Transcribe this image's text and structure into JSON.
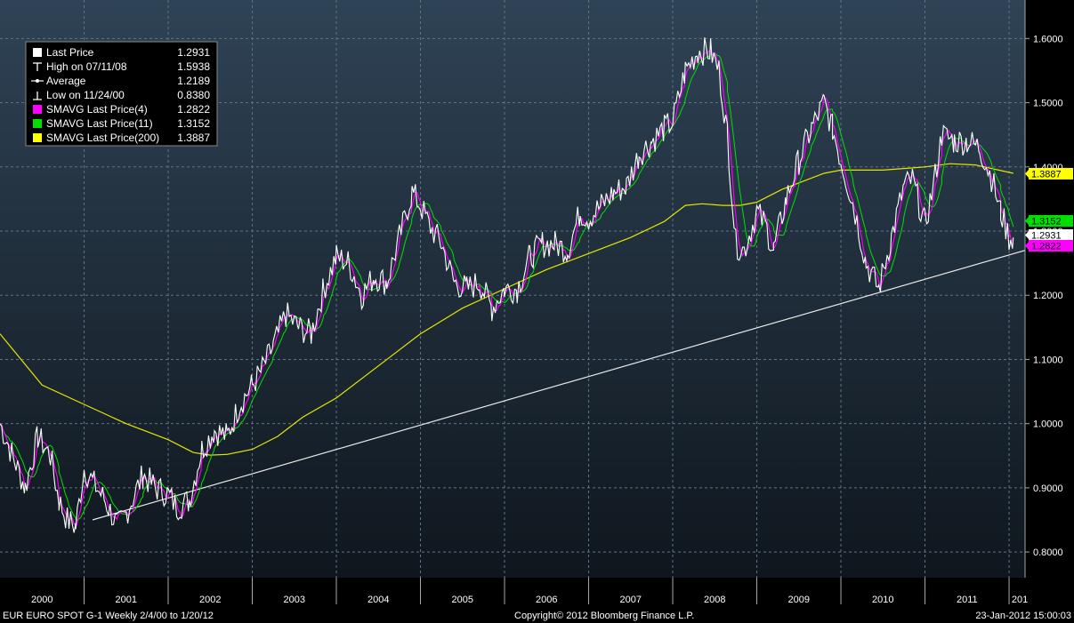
{
  "chart_data": {
    "type": "line",
    "title": "EUR EURO SPOT",
    "xlabel": "",
    "ylabel": "",
    "x_ticks": [
      "2000",
      "2001",
      "2002",
      "2003",
      "2004",
      "2005",
      "2006",
      "2007",
      "2008",
      "2009",
      "2010",
      "2011",
      "201"
    ],
    "y_ticks": [
      "0.8000",
      "0.9000",
      "1.0000",
      "1.1000",
      "1.2000",
      "1.3000",
      "1.4000",
      "1.5000",
      "1.6000"
    ],
    "ylim": [
      0.76,
      1.66
    ],
    "xlim": [
      2000.0,
      2012.19
    ],
    "legend": {
      "position": "top-left",
      "entries": [
        {
          "label": "Last Price",
          "value": "1.2931",
          "marker": "white-square"
        },
        {
          "label": "High on 07/11/08",
          "value": "1.5938",
          "marker": "high-mark"
        },
        {
          "label": "Average",
          "value": "1.2189",
          "marker": "average-mark"
        },
        {
          "label": "Low on 11/24/00",
          "value": "0.8380",
          "marker": "low-mark"
        },
        {
          "label": "SMAVG Last Price(4)",
          "value": "1.2822",
          "marker": "magenta-square"
        },
        {
          "label": "SMAVG Last Price(11)",
          "value": "1.3152",
          "marker": "green-square"
        },
        {
          "label": "SMAVG Last Price(200)",
          "value": "1.3887",
          "marker": "yellow-square"
        }
      ]
    },
    "series": [
      {
        "name": "Last Price",
        "color": "#ffffff",
        "x": [
          2000.0,
          2000.15,
          2000.3,
          2000.45,
          2000.6,
          2000.7,
          2000.8,
          2000.9,
          2001.0,
          2001.1,
          2001.25,
          2001.4,
          2001.5,
          2001.6,
          2001.7,
          2001.85,
          2002.0,
          2002.1,
          2002.25,
          2002.4,
          2002.55,
          2002.7,
          2002.85,
          2003.0,
          2003.1,
          2003.25,
          2003.4,
          2003.55,
          2003.7,
          2003.85,
          2004.0,
          2004.15,
          2004.3,
          2004.45,
          2004.6,
          2004.75,
          2004.9,
          2005.0,
          2005.1,
          2005.25,
          2005.4,
          2005.55,
          2005.7,
          2005.85,
          2006.0,
          2006.15,
          2006.3,
          2006.45,
          2006.6,
          2006.75,
          2006.9,
          2007.0,
          2007.15,
          2007.3,
          2007.45,
          2007.6,
          2007.75,
          2007.9,
          2008.0,
          2008.15,
          2008.3,
          2008.45,
          2008.55,
          2008.65,
          2008.75,
          2008.85,
          2009.0,
          2009.1,
          2009.2,
          2009.35,
          2009.5,
          2009.65,
          2009.8,
          2009.9,
          2010.0,
          2010.15,
          2010.3,
          2010.45,
          2010.6,
          2010.75,
          2010.85,
          2011.0,
          2011.1,
          2011.2,
          2011.35,
          2011.5,
          2011.65,
          2011.8,
          2011.9,
          2012.0,
          2012.05
        ],
        "y": [
          1.0,
          0.95,
          0.9,
          0.98,
          0.95,
          0.88,
          0.85,
          0.84,
          0.93,
          0.91,
          0.88,
          0.84,
          0.86,
          0.89,
          0.92,
          0.9,
          0.89,
          0.87,
          0.88,
          0.96,
          0.99,
          0.98,
          1.03,
          1.06,
          1.08,
          1.12,
          1.17,
          1.15,
          1.14,
          1.21,
          1.26,
          1.25,
          1.2,
          1.23,
          1.22,
          1.29,
          1.36,
          1.34,
          1.31,
          1.28,
          1.22,
          1.21,
          1.22,
          1.18,
          1.21,
          1.21,
          1.26,
          1.28,
          1.28,
          1.27,
          1.33,
          1.32,
          1.34,
          1.36,
          1.37,
          1.42,
          1.44,
          1.46,
          1.47,
          1.55,
          1.58,
          1.58,
          1.55,
          1.45,
          1.28,
          1.27,
          1.33,
          1.31,
          1.27,
          1.35,
          1.41,
          1.46,
          1.5,
          1.46,
          1.41,
          1.34,
          1.25,
          1.21,
          1.29,
          1.37,
          1.38,
          1.31,
          1.37,
          1.45,
          1.44,
          1.44,
          1.43,
          1.38,
          1.33,
          1.29,
          1.29
        ]
      },
      {
        "name": "SMAVG Last Price(200)",
        "color": "#e6e600",
        "x": [
          2000.0,
          2000.5,
          2001.0,
          2001.5,
          2002.0,
          2002.3,
          2002.5,
          2002.7,
          2003.0,
          2003.3,
          2003.6,
          2004.0,
          2004.5,
          2005.0,
          2005.5,
          2006.0,
          2006.5,
          2007.0,
          2007.5,
          2007.9,
          2008.15,
          2008.35,
          2008.6,
          2008.8,
          2009.0,
          2009.3,
          2009.6,
          2009.8,
          2010.0,
          2010.5,
          2011.0,
          2011.3,
          2011.6,
          2012.05
        ],
        "y": [
          1.14,
          1.06,
          1.03,
          1.0,
          0.975,
          0.955,
          0.951,
          0.952,
          0.96,
          0.98,
          1.01,
          1.04,
          1.09,
          1.14,
          1.18,
          1.21,
          1.24,
          1.265,
          1.29,
          1.315,
          1.34,
          1.3425,
          1.34,
          1.34,
          1.345,
          1.365,
          1.38,
          1.39,
          1.395,
          1.395,
          1.4,
          1.405,
          1.403,
          1.39
        ]
      },
      {
        "name": "Trendline",
        "color": "#ffffff",
        "x": [
          2001.1,
          2012.19
        ],
        "y": [
          0.85,
          1.27
        ]
      }
    ],
    "callouts": [
      {
        "label": "1.3887",
        "value": 1.3887,
        "color": "#ffff00"
      },
      {
        "label": "1.3152",
        "value": 1.3152,
        "color": "#00e000"
      },
      {
        "label": "1.2931",
        "value": 1.2931,
        "color": "#ffffff"
      },
      {
        "label": "1.2822",
        "value": 1.2822,
        "color": "#ff00ff"
      }
    ]
  },
  "footer": {
    "left": "EUR  EURO SPOT     G-1    Weekly  2/4/00 to 1/20/12",
    "center": "Copyright© 2012 Bloomberg Finance L.P.",
    "right": "23-Jan-2012 15:00:03"
  },
  "colors": {
    "background": "#000000",
    "plot_bg_top": "#2f4356",
    "plot_bg_bottom": "#101820",
    "grid": "#6b7f90",
    "last_price": "#ffffff",
    "sma4": "#ff00ff",
    "sma11": "#00e000",
    "sma200": "#e6e600"
  }
}
